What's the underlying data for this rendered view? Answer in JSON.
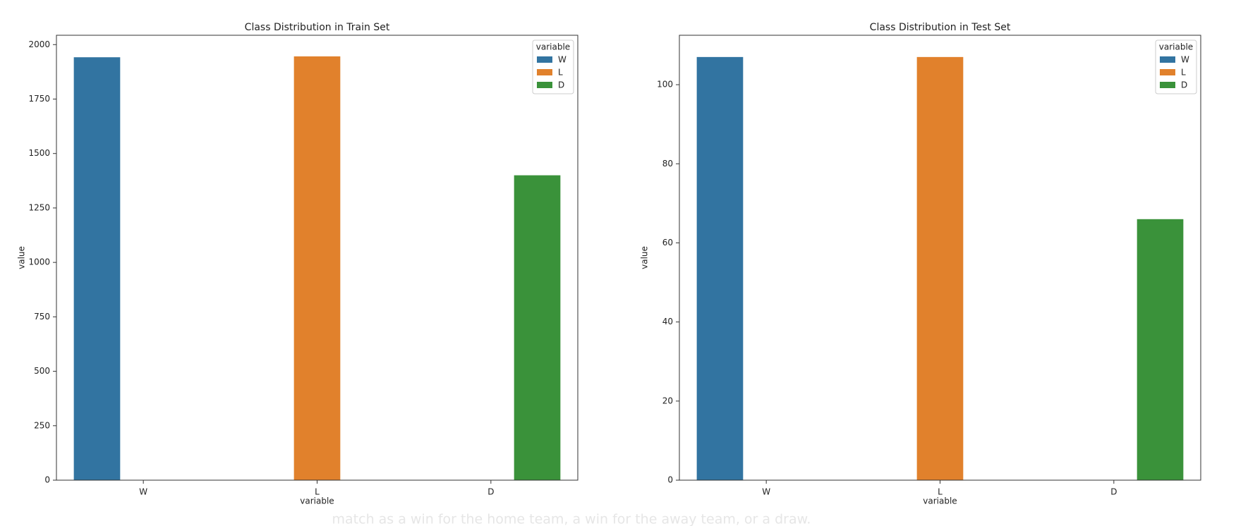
{
  "chart_data": [
    {
      "type": "bar",
      "title": "Class Distribution in Train Set",
      "xlabel": "variable",
      "ylabel": "value",
      "categories": [
        "W",
        "L",
        "D"
      ],
      "series": [
        {
          "name": "W",
          "color": "#3274a1",
          "values": [
            1942,
            null,
            null
          ]
        },
        {
          "name": "L",
          "color": "#e1812c",
          "values": [
            null,
            1946,
            null
          ]
        },
        {
          "name": "D",
          "color": "#3a923a",
          "values": [
            null,
            null,
            1400
          ]
        }
      ],
      "ylim": [
        0,
        2043
      ],
      "yticks": [
        0,
        250,
        500,
        750,
        1000,
        1250,
        1500,
        1750,
        2000
      ],
      "legend_title": "variable",
      "legend": "upper right"
    },
    {
      "type": "bar",
      "title": "Class Distribution in Test Set",
      "xlabel": "variable",
      "ylabel": "value",
      "categories": [
        "W",
        "L",
        "D"
      ],
      "series": [
        {
          "name": "W",
          "color": "#3274a1",
          "values": [
            107,
            null,
            null
          ]
        },
        {
          "name": "L",
          "color": "#e1812c",
          "values": [
            null,
            107,
            null
          ]
        },
        {
          "name": "D",
          "color": "#3a923a",
          "values": [
            null,
            null,
            66
          ]
        }
      ],
      "ylim": [
        0,
        112.5
      ],
      "yticks": [
        0,
        20,
        40,
        60,
        80,
        100
      ],
      "legend_title": "variable",
      "legend": "upper right"
    }
  ],
  "caption": "match as a win for the home team, a win for the away team, or a draw."
}
